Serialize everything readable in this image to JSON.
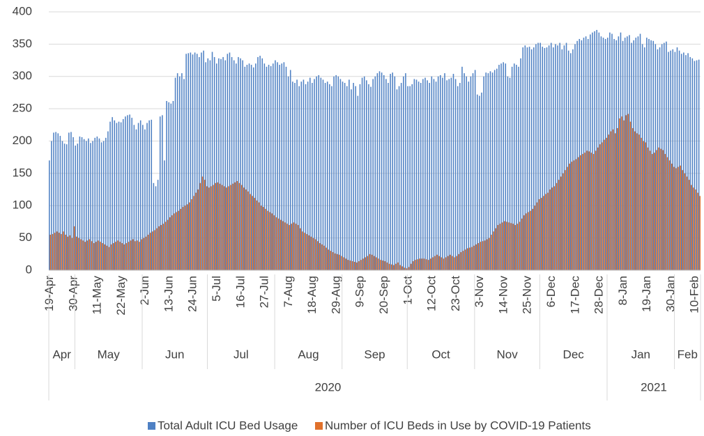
{
  "chart_data": {
    "type": "bar",
    "categories": [
      "19-Apr",
      null,
      null,
      null,
      null,
      null,
      null,
      null,
      null,
      null,
      null,
      "30-Apr",
      null,
      null,
      null,
      null,
      null,
      null,
      null,
      null,
      null,
      null,
      "11-May",
      null,
      null,
      null,
      null,
      null,
      null,
      null,
      null,
      null,
      null,
      "22-May",
      null,
      null,
      null,
      null,
      null,
      null,
      null,
      null,
      null,
      null,
      "2-Jun",
      null,
      null,
      null,
      null,
      null,
      null,
      null,
      null,
      null,
      null,
      "13-Jun",
      null,
      null,
      null,
      null,
      null,
      null,
      null,
      null,
      null,
      null,
      "24-Jun",
      null,
      null,
      null,
      null,
      null,
      null,
      null,
      null,
      null,
      null,
      "5-Jul",
      null,
      null,
      null,
      null,
      null,
      null,
      null,
      null,
      null,
      null,
      "16-Jul",
      null,
      null,
      null,
      null,
      null,
      null,
      null,
      null,
      null,
      null,
      "27-Jul",
      null,
      null,
      null,
      null,
      null,
      null,
      null,
      null,
      null,
      null,
      "7-Aug",
      null,
      null,
      null,
      null,
      null,
      null,
      null,
      null,
      null,
      null,
      "18-Aug",
      null,
      null,
      null,
      null,
      null,
      null,
      null,
      null,
      null,
      null,
      "29-Aug",
      null,
      null,
      null,
      null,
      null,
      null,
      null,
      null,
      null,
      null,
      "9-Sep",
      null,
      null,
      null,
      null,
      null,
      null,
      null,
      null,
      null,
      null,
      "20-Sep",
      null,
      null,
      null,
      null,
      null,
      null,
      null,
      null,
      null,
      null,
      "1-Oct",
      null,
      null,
      null,
      null,
      null,
      null,
      null,
      null,
      null,
      null,
      "12-Oct",
      null,
      null,
      null,
      null,
      null,
      null,
      null,
      null,
      null,
      null,
      "23-Oct",
      null,
      null,
      null,
      null,
      null,
      null,
      null,
      null,
      null,
      null,
      "3-Nov",
      null,
      null,
      null,
      null,
      null,
      null,
      null,
      null,
      null,
      null,
      "14-Nov",
      null,
      null,
      null,
      null,
      null,
      null,
      null,
      null,
      null,
      null,
      "25-Nov",
      null,
      null,
      null,
      null,
      null,
      null,
      null,
      null,
      null,
      null,
      "6-Dec",
      null,
      null,
      null,
      null,
      null,
      null,
      null,
      null,
      null,
      null,
      "17-Dec",
      null,
      null,
      null,
      null,
      null,
      null,
      null,
      null,
      null,
      null,
      "28-Dec",
      null,
      null,
      null,
      null,
      null,
      null,
      null,
      null,
      null,
      null,
      "8-Jan",
      null,
      null,
      null,
      null,
      null,
      null,
      null,
      null,
      null,
      null,
      "19-Jan",
      null,
      null,
      null,
      null,
      null,
      null,
      null,
      null,
      null,
      null,
      "30-Jan",
      null,
      null,
      null,
      null,
      null,
      null,
      null,
      null,
      null,
      null,
      "10-Feb",
      null,
      null
    ],
    "month_groups": [
      "Apr",
      "May",
      "Jun",
      "Jul",
      "Aug",
      "Sep",
      "Oct",
      "Nov",
      "Dec",
      "Jan",
      "Feb"
    ],
    "year_groups": [
      "2020",
      "2021"
    ],
    "series": [
      {
        "name": "Total Adult ICU Bed Usage",
        "color": "#4f81c4",
        "values": [
          170,
          200,
          213,
          214,
          212,
          208,
          200,
          196,
          195,
          213,
          214,
          206,
          193,
          196,
          207,
          206,
          203,
          200,
          204,
          197,
          200,
          205,
          207,
          204,
          198,
          200,
          205,
          215,
          230,
          237,
          232,
          228,
          230,
          229,
          234,
          238,
          240,
          241,
          236,
          225,
          218,
          228,
          232,
          225,
          218,
          228,
          232,
          233,
          135,
          130,
          140,
          238,
          240,
          170,
          262,
          260,
          258,
          262,
          298,
          305,
          300,
          305,
          296,
          335,
          336,
          337,
          334,
          337,
          335,
          330,
          337,
          340,
          322,
          328,
          325,
          338,
          330,
          320,
          328,
          327,
          330,
          325,
          335,
          337,
          330,
          325,
          320,
          330,
          328,
          325,
          315,
          318,
          320,
          318,
          314,
          320,
          330,
          332,
          328,
          320,
          315,
          318,
          316,
          320,
          325,
          322,
          318,
          320,
          322,
          315,
          300,
          310,
          292,
          290,
          295,
          285,
          292,
          295,
          288,
          292,
          298,
          290,
          296,
          300,
          302,
          298,
          295,
          290,
          292,
          288,
          285,
          300,
          302,
          300,
          296,
          292,
          290,
          285,
          295,
          280,
          290,
          285,
          270,
          288,
          298,
          300,
          294,
          288,
          284,
          296,
          300,
          305,
          308,
          306,
          302,
          296,
          290,
          304,
          306,
          300,
          280,
          285,
          290,
          300,
          305,
          285,
          285,
          288,
          296,
          295,
          292,
          290,
          296,
          298,
          294,
          290,
          300,
          296,
          292,
          300,
          302,
          298,
          305,
          294,
          296,
          298,
          304,
          296,
          285,
          290,
          315,
          305,
          300,
          292,
          300,
          305,
          310,
          272,
          270,
          275,
          300,
          306,
          305,
          308,
          306,
          310,
          312,
          318,
          320,
          322,
          320,
          300,
          298,
          315,
          320,
          318,
          315,
          328,
          345,
          348,
          345,
          346,
          342,
          345,
          350,
          352,
          352,
          346,
          344,
          345,
          348,
          352,
          345,
          350,
          348,
          352,
          342,
          348,
          352,
          340,
          336,
          342,
          350,
          355,
          358,
          356,
          360,
          362,
          358,
          365,
          368,
          370,
          372,
          368,
          362,
          360,
          358,
          360,
          368,
          366,
          358,
          356,
          362,
          368,
          355,
          360,
          362,
          364,
          352,
          356,
          360,
          362,
          366,
          350,
          345,
          360,
          358,
          356,
          355,
          350,
          342,
          345,
          350,
          352,
          354,
          338,
          340,
          342,
          338,
          345,
          340,
          335,
          337,
          333,
          336,
          330,
          328,
          324,
          325,
          326
        ]
      },
      {
        "name": "Number of ICU Beds in Use by COVID-19 Patients",
        "color": "#e0712c",
        "values": [
          55,
          56,
          58,
          60,
          58,
          56,
          60,
          55,
          52,
          54,
          50,
          68,
          52,
          50,
          48,
          46,
          44,
          46,
          48,
          45,
          42,
          44,
          46,
          44,
          42,
          40,
          38,
          36,
          40,
          42,
          44,
          46,
          44,
          42,
          40,
          42,
          44,
          46,
          48,
          45,
          46,
          44,
          48,
          50,
          52,
          55,
          58,
          60,
          62,
          65,
          68,
          70,
          72,
          75,
          78,
          82,
          85,
          88,
          90,
          92,
          95,
          98,
          100,
          102,
          105,
          110,
          115,
          120,
          125,
          135,
          145,
          140,
          130,
          128,
          130,
          132,
          135,
          136,
          134,
          132,
          130,
          128,
          130,
          132,
          134,
          136,
          138,
          135,
          132,
          128,
          125,
          122,
          118,
          115,
          112,
          108,
          105,
          100,
          98,
          95,
          92,
          90,
          88,
          85,
          82,
          80,
          78,
          76,
          74,
          72,
          70,
          72,
          74,
          72,
          70,
          65,
          60,
          58,
          56,
          54,
          52,
          50,
          48,
          45,
          42,
          40,
          38,
          35,
          32,
          30,
          28,
          26,
          25,
          24,
          22,
          20,
          18,
          16,
          15,
          14,
          13,
          12,
          14,
          16,
          18,
          20,
          22,
          25,
          24,
          22,
          20,
          18,
          16,
          15,
          14,
          12,
          10,
          9,
          8,
          10,
          12,
          8,
          6,
          4,
          3,
          5,
          10,
          14,
          16,
          17,
          18,
          18,
          18,
          17,
          16,
          18,
          20,
          22,
          24,
          22,
          20,
          18,
          20,
          22,
          24,
          22,
          20,
          22,
          25,
          28,
          30,
          32,
          34,
          35,
          36,
          38,
          40,
          42,
          44,
          45,
          46,
          48,
          50,
          55,
          60,
          65,
          70,
          72,
          74,
          76,
          75,
          74,
          73,
          72,
          70,
          72,
          75,
          80,
          85,
          88,
          90,
          92,
          95,
          100,
          105,
          110,
          112,
          115,
          118,
          120,
          125,
          128,
          130,
          135,
          140,
          145,
          150,
          155,
          160,
          165,
          168,
          170,
          172,
          175,
          178,
          180,
          182,
          185,
          184,
          182,
          180,
          185,
          190,
          195,
          198,
          202,
          205,
          210,
          215,
          218,
          212,
          220,
          235,
          238,
          232,
          240,
          242,
          230,
          220,
          215,
          212,
          210,
          205,
          200,
          198,
          190,
          185,
          180,
          182,
          186,
          190,
          188,
          186,
          180,
          175,
          170,
          165,
          160,
          158,
          160,
          162,
          155,
          150,
          145,
          140,
          132,
          128,
          125,
          120,
          115
        ]
      }
    ],
    "ylim": [
      0,
      400
    ],
    "yticks": [
      0,
      50,
      100,
      150,
      200,
      250,
      300,
      350,
      400
    ],
    "grid": true,
    "legend": "bottom"
  }
}
